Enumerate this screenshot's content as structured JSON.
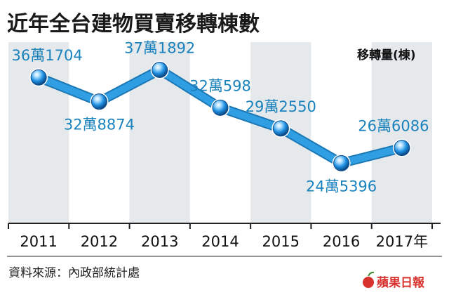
{
  "colors": {
    "line": "#2f9ee3",
    "line_edge": "#1c78b4",
    "label": "#1a82bd",
    "band": "#e6e9ec",
    "brand": "#d8322e"
  },
  "chart_data": {
    "type": "line",
    "title": "近年全台建物買賣移轉棟數",
    "unit_label": "移轉量(棟)",
    "categories": [
      "2011",
      "2012",
      "2013",
      "2014",
      "2015",
      "2016",
      "2017年"
    ],
    "values": [
      361704,
      328874,
      371892,
      320598,
      292550,
      245396,
      266086
    ],
    "data_labels": [
      "36萬1704",
      "32萬8874",
      "37萬1892",
      "32萬598",
      "29萬2550",
      "24萬5396",
      "26萬6086"
    ],
    "label_positions": [
      "above",
      "below",
      "above",
      "above",
      "above",
      "below",
      "above"
    ],
    "ylim": [
      200000,
      400000
    ],
    "grid": false,
    "background_bands": "alternating columns"
  },
  "source": "資料來源：內政部統計處",
  "brand": "蘋果日報"
}
